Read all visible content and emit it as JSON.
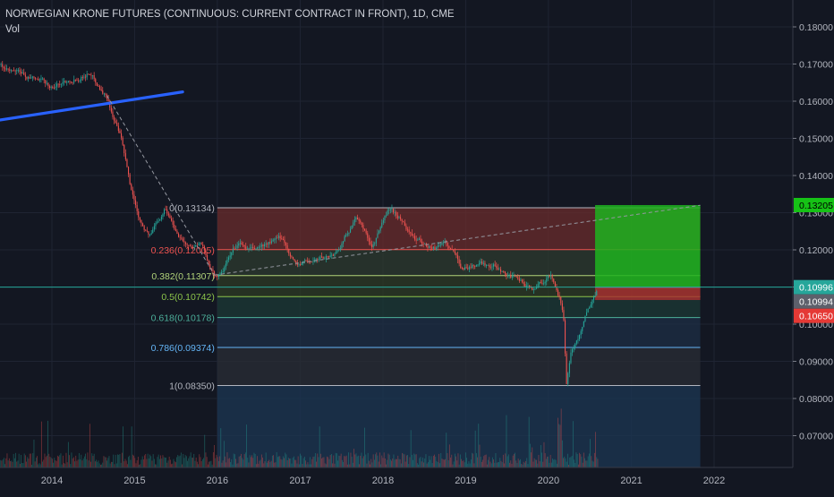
{
  "header": {
    "title": "NORWEGIAN KRONE FUTURES (CONTINUOUS: CURRENT CONTRACT IN FRONT), 1D, CME",
    "volume_label": "Vol"
  },
  "colors": {
    "background": "#131722",
    "up_candle": "#26a69a",
    "down_candle": "#ef5350",
    "trendline": "#2962ff",
    "target_zone": "#1fb31f",
    "stop_zone": "#ab2f2f",
    "current_price_line": "#26a69a"
  },
  "chart_data": {
    "type": "candlestick",
    "instrument": "NORWEGIAN KRONE FUTURES (CONTINUOUS: CURRENT CONTRACT IN FRONT)",
    "interval": "1D",
    "exchange": "CME",
    "x_range": [
      "2013-04-01",
      "2022-12-31"
    ],
    "ylim": [
      0.062,
      0.183
    ],
    "grid": true,
    "y_ticks": [
      "0.18000",
      "0.17000",
      "0.16000",
      "0.15000",
      "0.14000",
      "0.13000",
      "0.12000",
      "0.11000",
      "0.10000",
      "0.09000",
      "0.08000",
      "0.07000"
    ],
    "x_ticks": [
      "2014",
      "2015",
      "2016",
      "2017",
      "2018",
      "2019",
      "2020",
      "2021",
      "2022"
    ],
    "price_path": [
      {
        "date": "2013-04-01",
        "price": 0.172
      },
      {
        "date": "2013-07-01",
        "price": 0.1675
      },
      {
        "date": "2013-10-01",
        "price": 0.166
      },
      {
        "date": "2014-01-01",
        "price": 0.1635
      },
      {
        "date": "2014-04-01",
        "price": 0.1665
      },
      {
        "date": "2014-06-15",
        "price": 0.1685
      },
      {
        "date": "2014-09-01",
        "price": 0.1615
      },
      {
        "date": "2014-11-01",
        "price": 0.15
      },
      {
        "date": "2014-12-15",
        "price": 0.136
      },
      {
        "date": "2015-01-20",
        "price": 0.129
      },
      {
        "date": "2015-03-10",
        "price": 0.124
      },
      {
        "date": "2015-05-15",
        "price": 0.132
      },
      {
        "date": "2015-07-01",
        "price": 0.126
      },
      {
        "date": "2015-09-01",
        "price": 0.121
      },
      {
        "date": "2015-10-15",
        "price": 0.122
      },
      {
        "date": "2015-12-20",
        "price": 0.1132
      },
      {
        "date": "2016-01-20",
        "price": 0.1135
      },
      {
        "date": "2016-04-01",
        "price": 0.1215
      },
      {
        "date": "2016-06-01",
        "price": 0.1195
      },
      {
        "date": "2016-08-15",
        "price": 0.1215
      },
      {
        "date": "2016-10-15",
        "price": 0.1225
      },
      {
        "date": "2016-12-15",
        "price": 0.116
      },
      {
        "date": "2017-03-01",
        "price": 0.117
      },
      {
        "date": "2017-06-01",
        "price": 0.119
      },
      {
        "date": "2017-09-01",
        "price": 0.1285
      },
      {
        "date": "2017-11-15",
        "price": 0.121
      },
      {
        "date": "2018-01-25",
        "price": 0.1305
      },
      {
        "date": "2018-03-15",
        "price": 0.1285
      },
      {
        "date": "2018-06-01",
        "price": 0.1225
      },
      {
        "date": "2018-08-15",
        "price": 0.1205
      },
      {
        "date": "2018-10-01",
        "price": 0.1225
      },
      {
        "date": "2018-12-15",
        "price": 0.1155
      },
      {
        "date": "2019-03-01",
        "price": 0.1165
      },
      {
        "date": "2019-06-01",
        "price": 0.1155
      },
      {
        "date": "2019-08-15",
        "price": 0.1115
      },
      {
        "date": "2019-10-20",
        "price": 0.1095
      },
      {
        "date": "2020-01-10",
        "price": 0.1135
      },
      {
        "date": "2020-02-20",
        "price": 0.1075
      },
      {
        "date": "2020-03-10",
        "price": 0.1005
      },
      {
        "date": "2020-03-20",
        "price": 0.0835
      },
      {
        "date": "2020-04-10",
        "price": 0.0935
      },
      {
        "date": "2020-05-15",
        "price": 0.0965
      },
      {
        "date": "2020-06-15",
        "price": 0.1035
      },
      {
        "date": "2020-07-20",
        "price": 0.1075
      },
      {
        "date": "2020-08-05",
        "price": 0.11
      }
    ],
    "trendline": {
      "from": {
        "date": "2013-04-01",
        "price": 0.1545
      },
      "to": {
        "date": "2015-08-01",
        "price": 0.1625
      }
    },
    "fib_retracement": {
      "from": {
        "date": "2016-01-01",
        "price": 0.0835
      },
      "to": {
        "date": "2021-11-01",
        "price": 0.13134
      },
      "levels": [
        {
          "ratio": "0",
          "price": 0.13134,
          "label": "0(0.13134)",
          "color": "#b2b5be",
          "fill": "#6b2c2c"
        },
        {
          "ratio": "0.236",
          "price": 0.12005,
          "label": "0.236(0.12005)",
          "color": "#ef5350",
          "fill": "#2e3b2f"
        },
        {
          "ratio": "0.382",
          "price": 0.11307,
          "label": "0.382(0.11307)",
          "color": "#b2d47a",
          "fill": "#2e3b24"
        },
        {
          "ratio": "0.5",
          "price": 0.10742,
          "label": "0.5(0.10742)",
          "color": "#8bc34a",
          "fill": "#1c3a35"
        },
        {
          "ratio": "0.618",
          "price": 0.10178,
          "label": "0.618(0.10178)",
          "color": "#4caf9a",
          "fill": "#1e2f45"
        },
        {
          "ratio": "0.786",
          "price": 0.09374,
          "label": "0.786(0.09374)",
          "color": "#64b5f6",
          "fill": "#2a2d36"
        },
        {
          "ratio": "1",
          "price": 0.0835,
          "label": "1(0.08350)",
          "color": "#b2b5be",
          "fill": "#1c3450"
        }
      ]
    },
    "position": {
      "start": "2020-07-25",
      "end": "2021-11-01",
      "entry": 0.10994,
      "target": 0.13205,
      "stop": 0.1065
    },
    "price_labels": [
      {
        "value": "0.13205",
        "color": "#16c216",
        "text_color": "#000000"
      },
      {
        "value": "0.10996",
        "color": "#26a69a",
        "text_color": "#ffffff"
      },
      {
        "value": "0.10994",
        "color": "#5d606b",
        "text_color": "#ffffff"
      },
      {
        "value": "0.10650",
        "color": "#e53935",
        "text_color": "#ffffff"
      }
    ],
    "current_price": 0.10996
  }
}
